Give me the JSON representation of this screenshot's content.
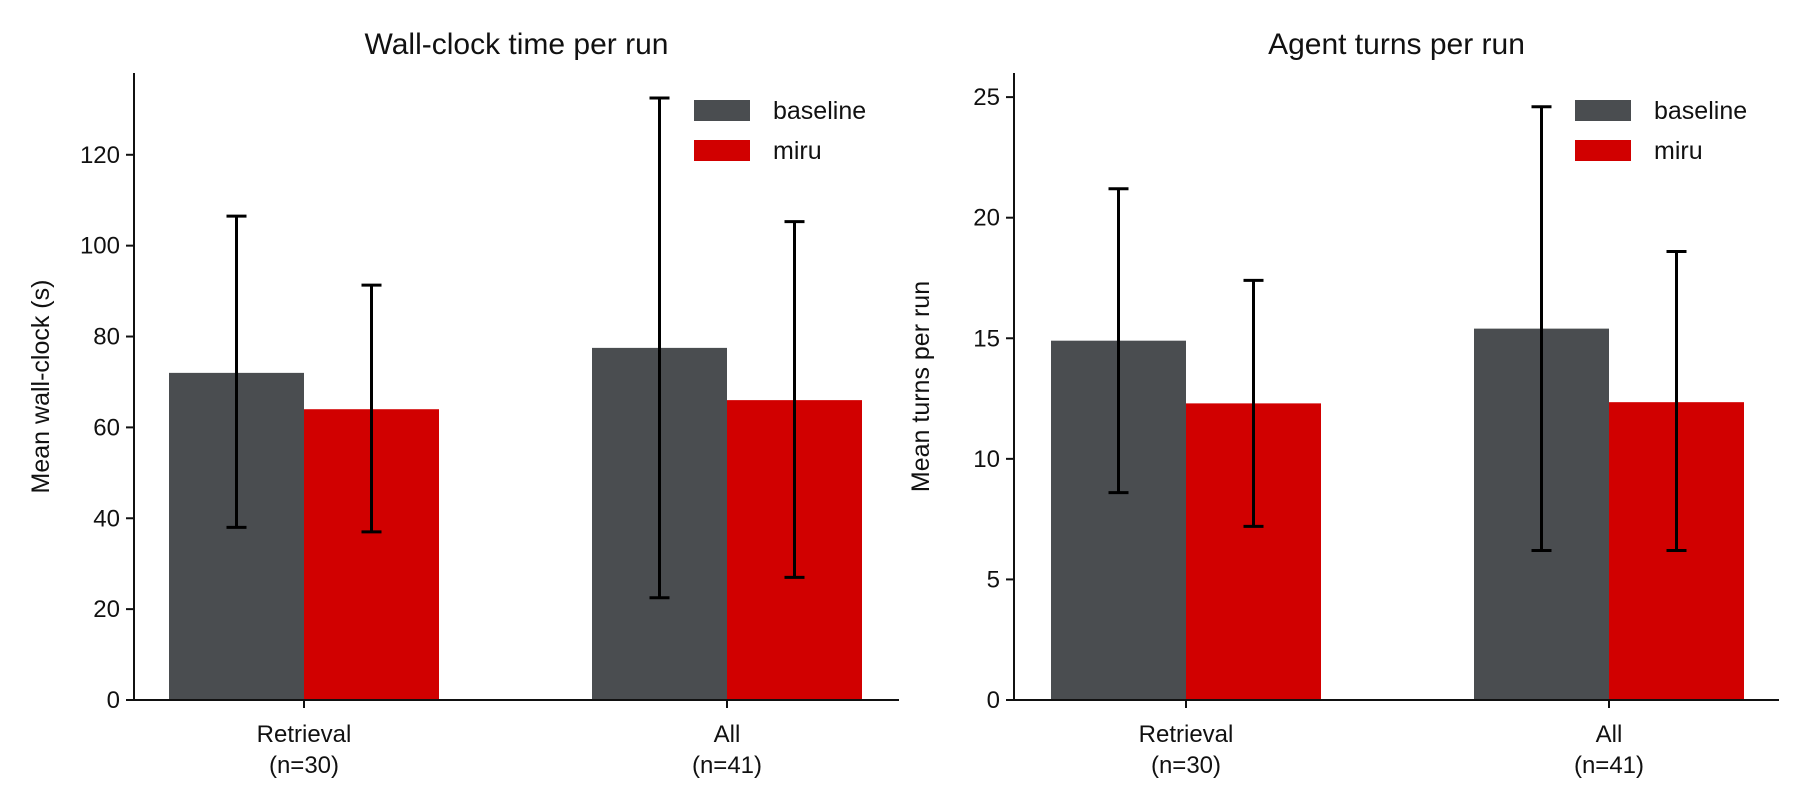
{
  "chart_data": [
    {
      "type": "bar",
      "title": "Wall-clock time per run",
      "xlabel": "",
      "ylabel": "Mean wall-clock (s)",
      "ylim": [
        0,
        138
      ],
      "yticks": [
        0,
        20,
        40,
        60,
        80,
        100,
        120
      ],
      "categories": [
        "Retrieval\n(n=30)",
        "All\n(n=41)"
      ],
      "legend_position": "top-right",
      "grid": false,
      "series": [
        {
          "name": "baseline",
          "color": "#4a4d50",
          "values": [
            72,
            77.5
          ],
          "err_low": [
            38,
            22.5
          ],
          "err_high": [
            106.5,
            132.5
          ]
        },
        {
          "name": "miru",
          "color": "#d10000",
          "values": [
            64,
            66
          ],
          "err_low": [
            37,
            27
          ],
          "err_high": [
            91.3,
            105.3
          ]
        }
      ]
    },
    {
      "type": "bar",
      "title": "Agent turns per run",
      "xlabel": "",
      "ylabel": "Mean turns per run",
      "ylim": [
        0,
        26
      ],
      "yticks": [
        0,
        5,
        10,
        15,
        20,
        25
      ],
      "categories": [
        "Retrieval\n(n=30)",
        "All\n(n=41)"
      ],
      "legend_position": "top-right",
      "grid": false,
      "series": [
        {
          "name": "baseline",
          "color": "#4a4d50",
          "values": [
            14.9,
            15.4
          ],
          "err_low": [
            8.6,
            6.2
          ],
          "err_high": [
            21.2,
            24.6
          ]
        },
        {
          "name": "miru",
          "color": "#d10000",
          "values": [
            12.3,
            12.35
          ],
          "err_low": [
            7.2,
            6.2
          ],
          "err_high": [
            17.4,
            18.6
          ]
        }
      ]
    }
  ]
}
